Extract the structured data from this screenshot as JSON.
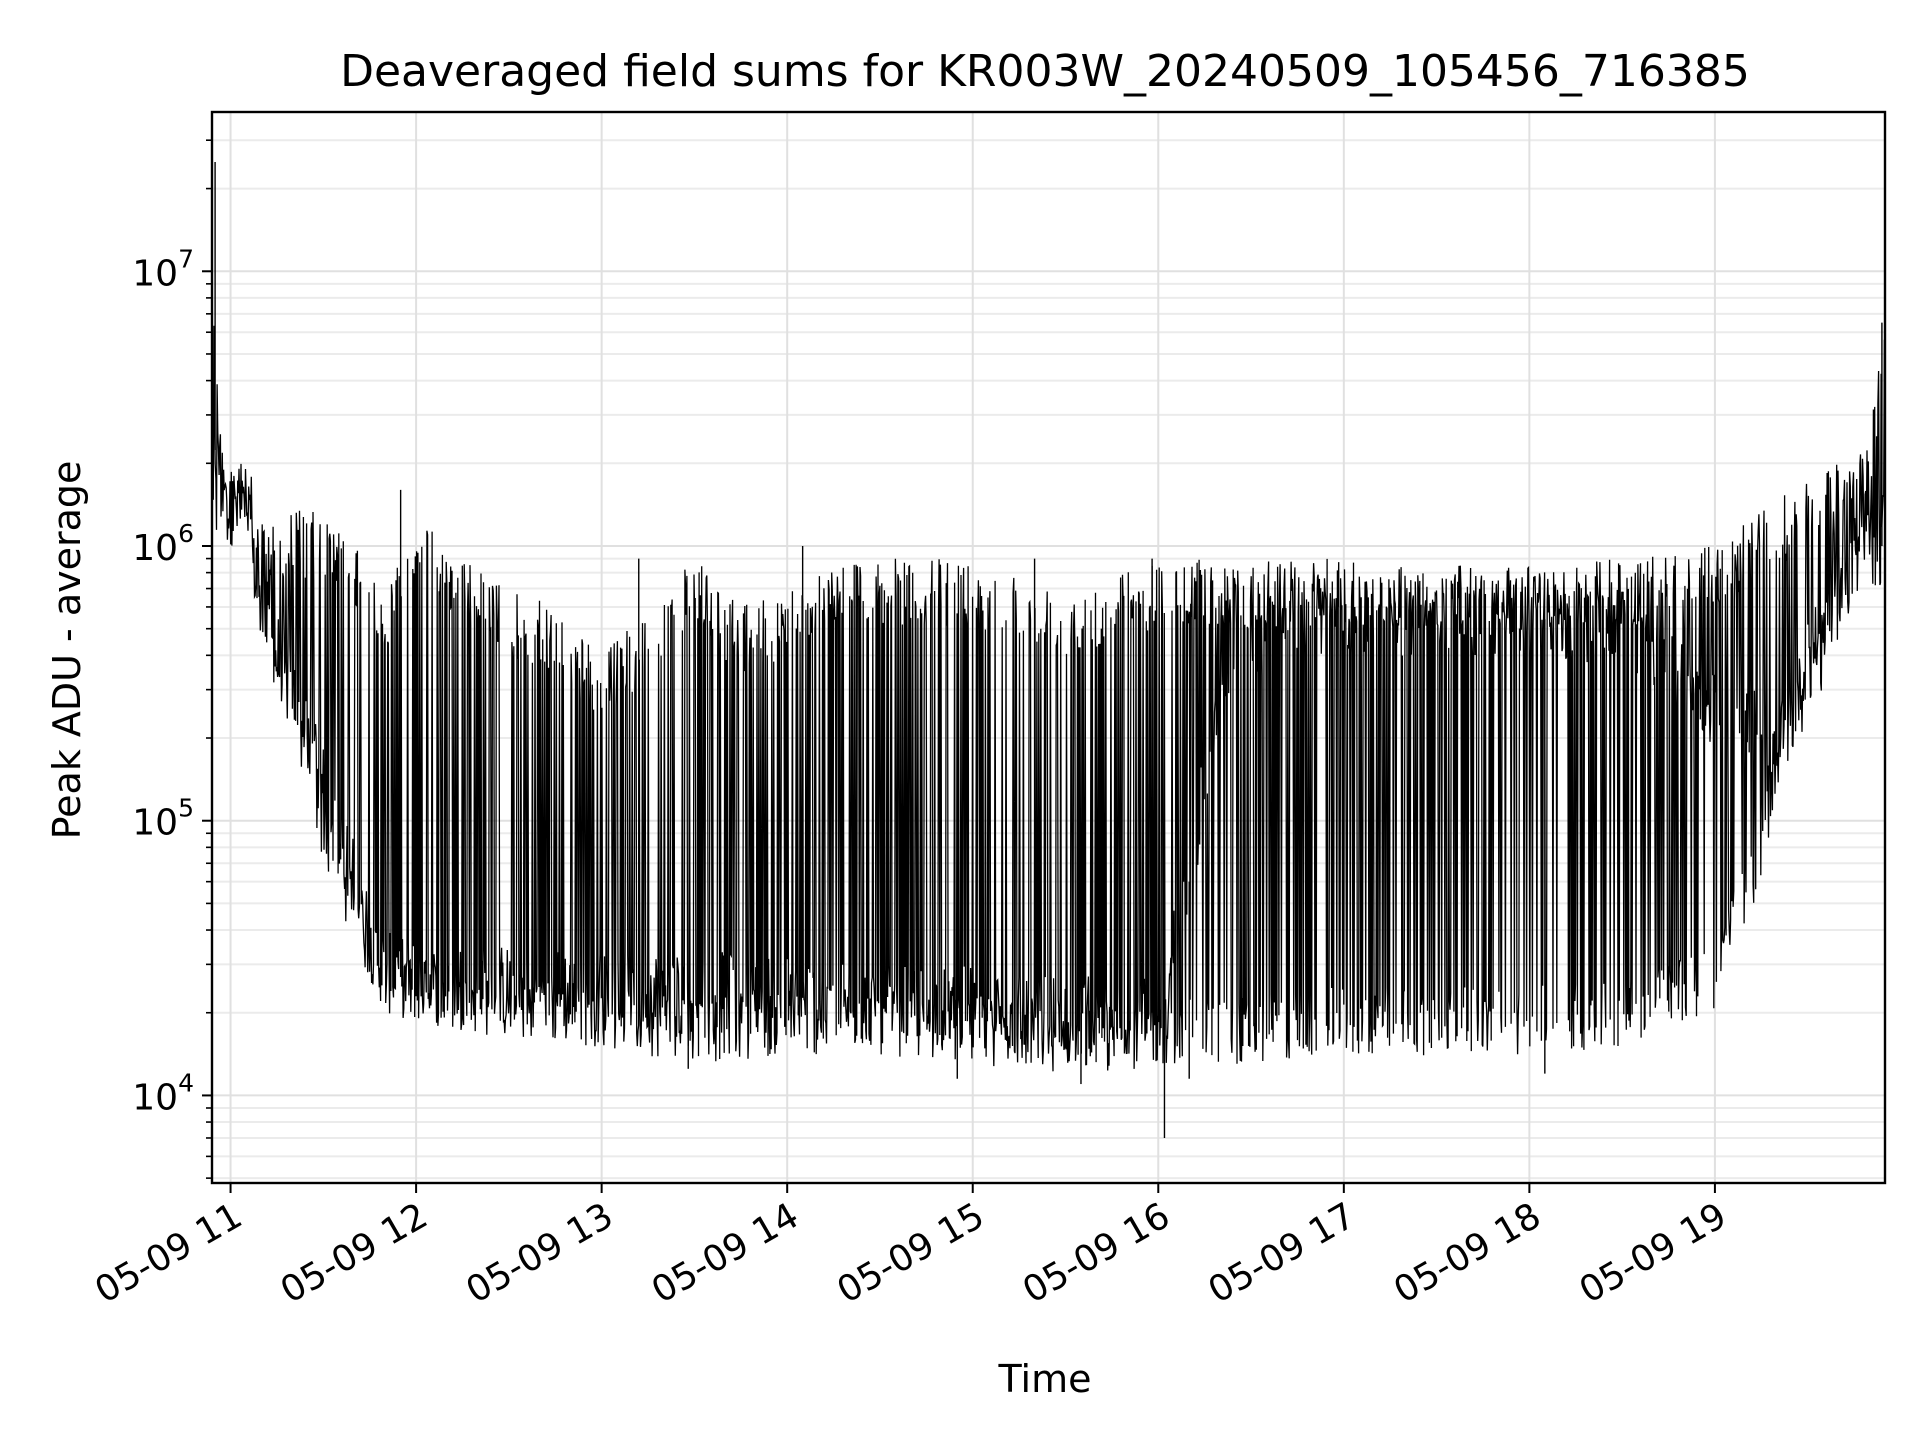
{
  "chart_data": {
    "type": "line",
    "title": "Deaveraged field sums for KR003W_20240509_105456_716385",
    "xlabel": "Time",
    "ylabel": "Peak ADU - average",
    "x_range": [
      "2024-05-09 10:54",
      "2024-05-09 19:55"
    ],
    "y_scale": "log",
    "ylim": [
      4800,
      38000000
    ],
    "grid": {
      "major": true,
      "minor_y": true
    },
    "legend": "none",
    "line_color": "#000000",
    "x_ticks": [
      {
        "value": "2024-05-09 11:00",
        "label": "05-09 11"
      },
      {
        "value": "2024-05-09 12:00",
        "label": "05-09 12"
      },
      {
        "value": "2024-05-09 13:00",
        "label": "05-09 13"
      },
      {
        "value": "2024-05-09 14:00",
        "label": "05-09 14"
      },
      {
        "value": "2024-05-09 15:00",
        "label": "05-09 15"
      },
      {
        "value": "2024-05-09 16:00",
        "label": "05-09 16"
      },
      {
        "value": "2024-05-09 17:00",
        "label": "05-09 17"
      },
      {
        "value": "2024-05-09 18:00",
        "label": "05-09 18"
      },
      {
        "value": "2024-05-09 19:00",
        "label": "05-09 19"
      }
    ],
    "y_ticks": [
      {
        "value": 10000,
        "base": "10",
        "exp": "4"
      },
      {
        "value": 100000,
        "base": "10",
        "exp": "5"
      },
      {
        "value": 1000000,
        "base": "10",
        "exp": "6"
      },
      {
        "value": 10000000,
        "base": "10",
        "exp": "7"
      }
    ],
    "series": [
      {
        "upper_envelope": [
          [
            "2024-05-09 10:54",
            2500000
          ],
          [
            "2024-05-09 10:55",
            25000000
          ],
          [
            "2024-05-09 10:56",
            3000000
          ],
          [
            "2024-05-09 11:00",
            2000000
          ],
          [
            "2024-05-09 11:05",
            2200000
          ],
          [
            "2024-05-09 11:10",
            1200000
          ],
          [
            "2024-05-09 11:20",
            1400000
          ],
          [
            "2024-05-09 11:30",
            1300000
          ],
          [
            "2024-05-09 11:40",
            1000000
          ],
          [
            "2024-05-09 11:50",
            700000
          ],
          [
            "2024-05-09 12:00",
            1300000
          ],
          [
            "2024-05-09 12:15",
            900000
          ],
          [
            "2024-05-09 12:30",
            700000
          ],
          [
            "2024-05-09 12:45",
            600000
          ],
          [
            "2024-05-09 13:00",
            400000
          ],
          [
            "2024-05-09 13:15",
            600000
          ],
          [
            "2024-05-09 13:30",
            900000
          ],
          [
            "2024-05-09 13:45",
            600000
          ],
          [
            "2024-05-09 14:00",
            700000
          ],
          [
            "2024-05-09 14:15",
            900000
          ],
          [
            "2024-05-09 14:30",
            900000
          ],
          [
            "2024-05-09 15:00",
            900000
          ],
          [
            "2024-05-09 15:30",
            700000
          ],
          [
            "2024-05-09 16:00",
            900000
          ],
          [
            "2024-05-09 16:30",
            900000
          ],
          [
            "2024-05-09 17:00",
            900000
          ],
          [
            "2024-05-09 17:30",
            850000
          ],
          [
            "2024-05-09 18:00",
            850000
          ],
          [
            "2024-05-09 18:30",
            900000
          ],
          [
            "2024-05-09 19:00",
            1000000
          ],
          [
            "2024-05-09 19:20",
            1500000
          ],
          [
            "2024-05-09 19:40",
            2000000
          ],
          [
            "2024-05-09 19:50",
            2500000
          ],
          [
            "2024-05-09 19:54",
            6500000
          ]
        ],
        "baseline": [
          [
            "2024-05-09 10:54",
            2500000
          ],
          [
            "2024-05-09 10:56",
            2000000
          ],
          [
            "2024-05-09 11:05",
            1700000
          ],
          [
            "2024-05-09 11:08",
            600000
          ],
          [
            "2024-05-09 11:12",
            500000
          ],
          [
            "2024-05-09 11:20",
            300000
          ],
          [
            "2024-05-09 11:30",
            150000
          ],
          [
            "2024-05-09 11:40",
            60000
          ],
          [
            "2024-05-09 11:50",
            28000
          ],
          [
            "2024-05-09 12:00",
            26000
          ],
          [
            "2024-05-09 12:30",
            25000
          ],
          [
            "2024-05-09 13:00",
            24000
          ],
          [
            "2024-05-09 13:30",
            24000
          ],
          [
            "2024-05-09 14:00",
            23000
          ],
          [
            "2024-05-09 14:30",
            21000
          ],
          [
            "2024-05-09 15:00",
            21000
          ],
          [
            "2024-05-09 15:30",
            20000
          ],
          [
            "2024-05-09 16:00",
            20000
          ],
          [
            "2024-05-09 16:10",
            60000
          ],
          [
            "2024-05-09 16:20",
            300000
          ],
          [
            "2024-05-09 16:40",
            550000
          ],
          [
            "2024-05-09 17:00",
            550000
          ],
          [
            "2024-05-09 17:30",
            550000
          ],
          [
            "2024-05-09 18:00",
            550000
          ],
          [
            "2024-05-09 18:30",
            500000
          ],
          [
            "2024-05-09 18:50",
            350000
          ],
          [
            "2024-05-09 19:00",
            250000
          ],
          [
            "2024-05-09 19:20",
            200000
          ],
          [
            "2024-05-09 19:35",
            400000
          ],
          [
            "2024-05-09 19:45",
            1000000
          ],
          [
            "2024-05-09 19:54",
            1000000
          ]
        ],
        "lower_envelope": [
          [
            "2024-05-09 10:54",
            1000000
          ],
          [
            "2024-05-09 11:05",
            1000000
          ],
          [
            "2024-05-09 11:10",
            400000
          ],
          [
            "2024-05-09 11:20",
            200000
          ],
          [
            "2024-05-09 11:30",
            70000
          ],
          [
            "2024-05-09 11:40",
            35000
          ],
          [
            "2024-05-09 11:50",
            20000
          ],
          [
            "2024-05-09 12:00",
            18000
          ],
          [
            "2024-05-09 12:30",
            16000
          ],
          [
            "2024-05-09 13:00",
            15000
          ],
          [
            "2024-05-09 13:30",
            13000
          ],
          [
            "2024-05-09 14:00",
            14000
          ],
          [
            "2024-05-09 14:30",
            14000
          ],
          [
            "2024-05-09 15:00",
            13000
          ],
          [
            "2024-05-09 15:30",
            12000
          ],
          [
            "2024-05-09 15:45",
            12000
          ],
          [
            "2024-05-09 16:00",
            13000
          ],
          [
            "2024-05-09 16:30",
            13000
          ],
          [
            "2024-05-09 17:00",
            14000
          ],
          [
            "2024-05-09 17:30",
            14000
          ],
          [
            "2024-05-09 18:00",
            14000
          ],
          [
            "2024-05-09 18:30",
            15000
          ],
          [
            "2024-05-09 19:00",
            20000
          ],
          [
            "2024-05-09 19:15",
            60000
          ],
          [
            "2024-05-09 19:30",
            300000
          ],
          [
            "2024-05-09 19:45",
            600000
          ],
          [
            "2024-05-09 19:54",
            900000
          ]
        ],
        "spikes": [
          [
            "2024-05-09 10:55",
            25000000
          ],
          [
            "2024-05-09 11:55",
            1600000
          ],
          [
            "2024-05-09 13:12",
            900000
          ],
          [
            "2024-05-09 14:05",
            1000000
          ],
          [
            "2024-05-09 15:20",
            900000
          ],
          [
            "2024-05-09 15:58",
            900000
          ],
          [
            "2024-05-09 19:54",
            6500000
          ]
        ],
        "dips": [
          [
            "2024-05-09 13:28",
            12500
          ],
          [
            "2024-05-09 14:55",
            11500
          ],
          [
            "2024-05-09 15:35",
            11000
          ],
          [
            "2024-05-09 16:02",
            7000
          ],
          [
            "2024-05-09 16:10",
            11500
          ],
          [
            "2024-05-09 18:05",
            12000
          ]
        ]
      }
    ]
  }
}
